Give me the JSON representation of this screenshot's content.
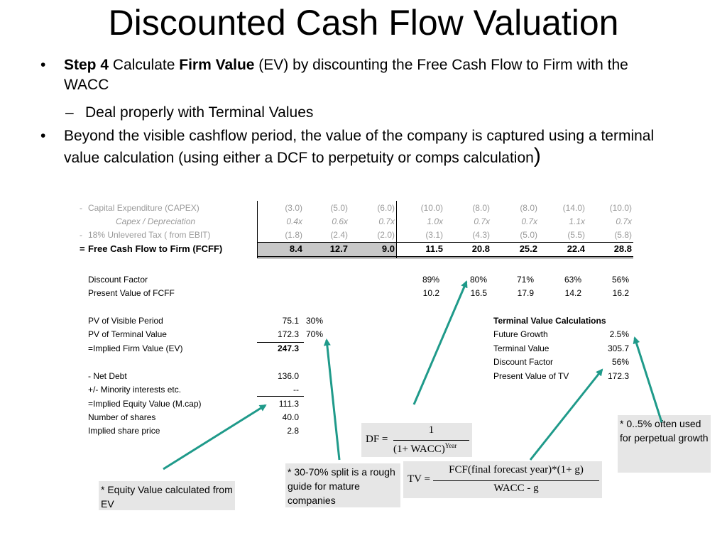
{
  "title": "Discounted Cash Flow Valuation",
  "bullets": {
    "b1_step": "Step 4",
    "b1_text1": " Calculate ",
    "b1_firm": "Firm Value",
    "b1_text2": " (EV) by discounting the Free Cash Flow to Firm with the WACC",
    "b1_sub": "Deal properly with Terminal Values",
    "b2_text": "Beyond the visible cashflow period, the value of the company is captured using a terminal value calculation (using either a DCF to perpetuity or comps calculation",
    "b2_paren": ")"
  },
  "table_top": {
    "rows": [
      {
        "prefix": "-",
        "label": "Capital Expenditure (CAPEX)",
        "values": [
          "(3.0)",
          "(5.0)",
          "(6.0)",
          "(10.0)",
          "(8.0)",
          "(8.0)",
          "(14.0)",
          "(10.0)"
        ]
      },
      {
        "prefix": "",
        "label": "Capex / Depreciation",
        "values": [
          "0.4x",
          "0.6x",
          "0.7x",
          "1.0x",
          "0.7x",
          "0.7x",
          "1.1x",
          "0.7x"
        ]
      },
      {
        "prefix": "-",
        "label": "18%   Unlevered Tax ( from EBIT)",
        "values": [
          "(1.8)",
          "(2.4)",
          "(2.0)",
          "(3.1)",
          "(4.3)",
          "(5.0)",
          "(5.5)",
          "(5.8)"
        ]
      },
      {
        "prefix": "=",
        "label": "Free Cash Flow to Firm (FCFF)",
        "values": [
          "8.4",
          "12.7",
          "9.0",
          "11.5",
          "20.8",
          "25.2",
          "22.4",
          "28.8"
        ]
      }
    ]
  },
  "discount": {
    "factor_label": "Discount Factor",
    "factor_values": [
      "89%",
      "80%",
      "71%",
      "63%",
      "56%"
    ],
    "pv_label": "Present Value of FCFF",
    "pv_values": [
      "10.2",
      "16.5",
      "17.9",
      "14.2",
      "16.2"
    ]
  },
  "left_block": [
    {
      "label": "PV of Visible Period",
      "value": "75.1",
      "pct": "30%"
    },
    {
      "label": "PV of Terminal Value",
      "value": "172.3",
      "pct": "70%"
    },
    {
      "label": "=Implied Firm Value (EV)",
      "value": "247.3",
      "pct": ""
    },
    {
      "label": "- Net Debt",
      "value": "136.0",
      "pct": ""
    },
    {
      "label": "+/- Minority interests etc.",
      "value": "--",
      "pct": ""
    },
    {
      "label": "=Implied Equity Value (M.cap)",
      "value": "111.3",
      "pct": ""
    },
    {
      "label": "Number of shares",
      "value": "40.0",
      "pct": ""
    },
    {
      "label": "Implied share price",
      "value": "2.8",
      "pct": ""
    }
  ],
  "terminal": {
    "heading": "Terminal Value Calculations",
    "rows": [
      {
        "label": "Future Growth",
        "value": "2.5%"
      },
      {
        "label": "Terminal Value",
        "value": "305.7"
      },
      {
        "label": "Discount Factor",
        "value": "56%"
      },
      {
        "label": "Present Value of TV",
        "value": "172.3"
      }
    ]
  },
  "notes": {
    "equity": "* Equity Value calculated from EV",
    "split": "* 30-70% split is a rough guide for mature companies",
    "growth": "* 0..5% often used for perpetual growth"
  },
  "formulas": {
    "df_lhs": "DF =",
    "df_num": "1",
    "df_den": "(1+ WACC)",
    "df_exp": "Year",
    "tv_lhs": "TV =",
    "tv_num": "FCF(final forecast year)*(1+ g)",
    "tv_den": "WACC - g"
  },
  "colors": {
    "shade": "#c8c8c8",
    "note_bg": "#e6e6e6",
    "arrow": "#1f9a8a"
  }
}
